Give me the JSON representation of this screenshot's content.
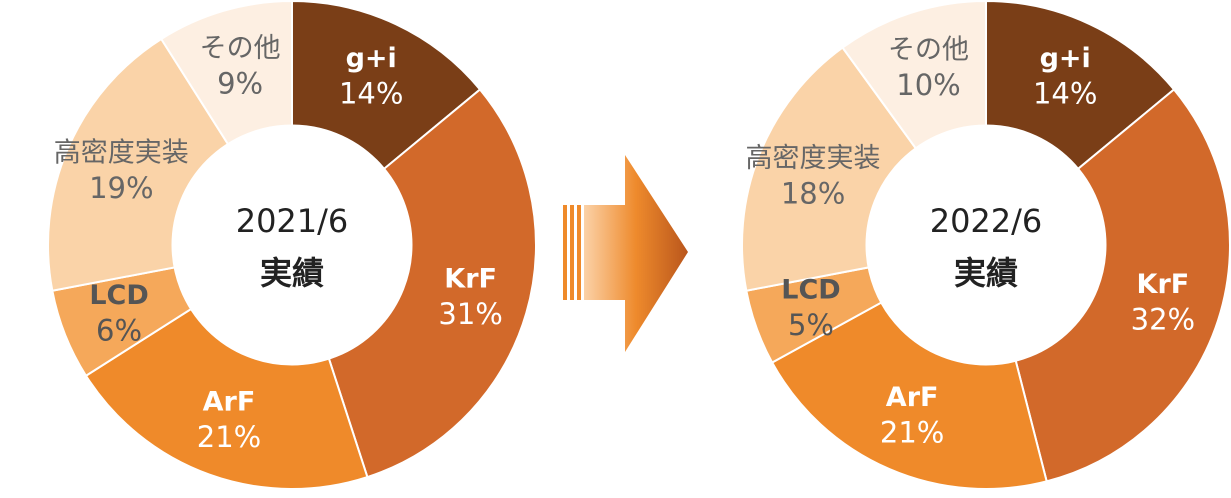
{
  "chart_data": [
    {
      "type": "pie",
      "title": "2021/6",
      "subtitle": "実績",
      "categories": [
        "g+i",
        "KrF",
        "ArF",
        "LCD",
        "高密度実装",
        "その他"
      ],
      "values": [
        14,
        31,
        21,
        6,
        19,
        9
      ],
      "value_labels": [
        "14%",
        "31%",
        "21%",
        "6%",
        "19%",
        "9%"
      ],
      "colors": [
        "#7a3e17",
        "#d2692a",
        "#ef8a2a",
        "#f5a85a",
        "#fad3a8",
        "#fdefe2"
      ],
      "label_colors": [
        "#ffffff",
        "#ffffff",
        "#ffffff",
        "#555555",
        "#666666",
        "#666666"
      ]
    },
    {
      "type": "pie",
      "title": "2022/6",
      "subtitle": "実績",
      "categories": [
        "g+i",
        "KrF",
        "ArF",
        "LCD",
        "高密度実装",
        "その他"
      ],
      "values": [
        14,
        32,
        21,
        5,
        18,
        10
      ],
      "value_labels": [
        "14%",
        "32%",
        "21%",
        "5%",
        "18%",
        "10%"
      ],
      "colors": [
        "#7a3e17",
        "#d2692a",
        "#ef8a2a",
        "#f5a85a",
        "#fad3a8",
        "#fdefe2"
      ],
      "label_colors": [
        "#ffffff",
        "#ffffff",
        "#ffffff",
        "#555555",
        "#666666",
        "#666666"
      ]
    }
  ]
}
